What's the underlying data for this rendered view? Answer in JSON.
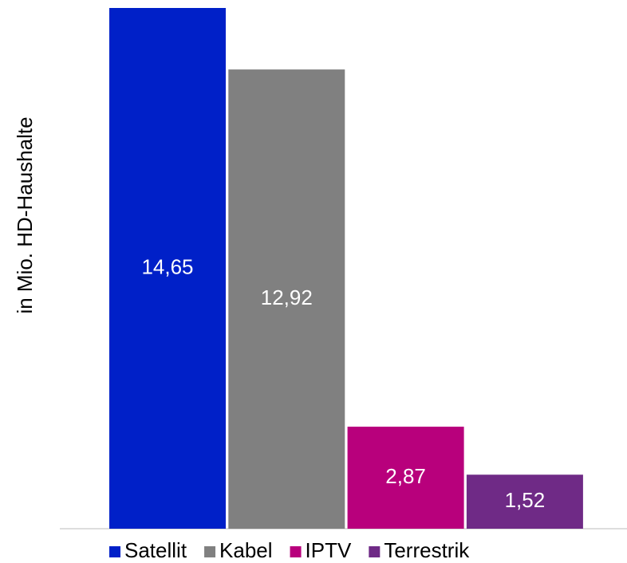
{
  "chart_data": {
    "type": "bar",
    "y_label": "in Mio. HD-Haushalte",
    "series": [
      {
        "name": "Satellit",
        "color": "#0020c8",
        "values": [
          14.65
        ],
        "value_labels": [
          "14,65"
        ]
      },
      {
        "name": "Kabel",
        "color": "#808080",
        "values": [
          12.92
        ],
        "value_labels": [
          "12,92"
        ]
      },
      {
        "name": "IPTV",
        "color": "#b8007c",
        "values": [
          2.87
        ],
        "value_labels": [
          "2,87"
        ]
      },
      {
        "name": "Terrestrik",
        "color": "#6f2a86",
        "values": [
          1.52
        ],
        "value_labels": [
          "1,52"
        ]
      }
    ],
    "ylim": [
      0,
      14.65
    ],
    "legend": "bottom"
  }
}
